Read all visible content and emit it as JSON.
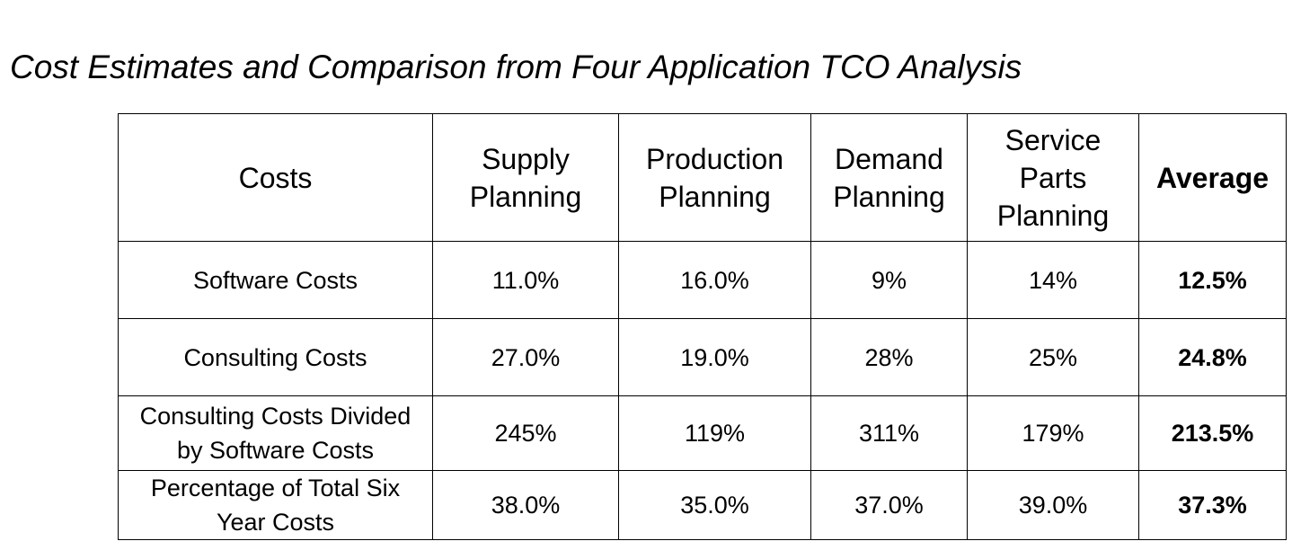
{
  "title": "Cost Estimates and Comparison from Four Application TCO Analysis",
  "table": {
    "headers": [
      "Costs",
      "Supply\nPlanning",
      "Production\nPlanning",
      "Demand\nPlanning",
      "Service\nParts\nPlanning",
      "Average"
    ],
    "rows": [
      {
        "label": "Software Costs",
        "cells": [
          "11.0%",
          "16.0%",
          "9%",
          "14%",
          "12.5%"
        ]
      },
      {
        "label": "Consulting Costs",
        "cells": [
          "27.0%",
          "19.0%",
          "28%",
          "25%",
          "24.8%"
        ]
      },
      {
        "label": "Consulting Costs Divided\nby Software Costs",
        "cells": [
          "245%",
          "119%",
          "311%",
          "179%",
          "213.5%"
        ]
      },
      {
        "label": "Percentage of Total Six\nYear Costs",
        "cells": [
          "38.0%",
          "35.0%",
          "37.0%",
          "39.0%",
          "37.3%"
        ]
      }
    ]
  }
}
